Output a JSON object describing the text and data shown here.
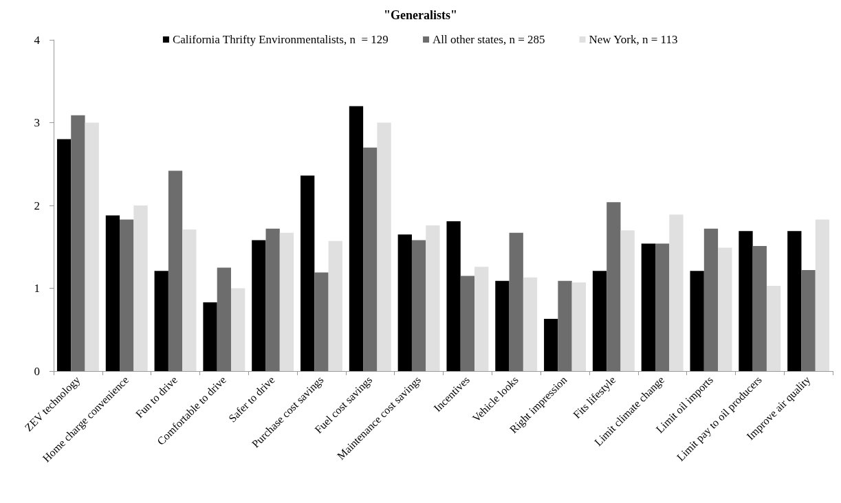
{
  "chart_data": {
    "type": "bar",
    "title": "\"Generalists\"",
    "categories": [
      "ZEV technology",
      "Home charge convenience",
      "Fun to drive",
      "Comfortable to drive",
      "Safer to drive",
      "Purchase cost savings",
      "Fuel cost savings",
      "Maintenance cost savings",
      "Incentives",
      "Vehicle looks",
      "Right impression",
      "Fits lifestyle",
      "Limit climate change",
      "Limit oil imports",
      "Limit pay to oil producers",
      "Improve air quality"
    ],
    "series": [
      {
        "name": "California Thrifty Environmentalists, n  = 129",
        "color": "#000000",
        "values": [
          2.8,
          1.88,
          1.21,
          0.83,
          1.58,
          2.36,
          3.2,
          1.65,
          1.81,
          1.09,
          0.63,
          1.21,
          1.54,
          1.21,
          1.69,
          1.69
        ]
      },
      {
        "name": "All other states, n = 285",
        "color": "#6d6d6d",
        "values": [
          3.09,
          1.83,
          2.42,
          1.25,
          1.72,
          1.19,
          2.7,
          1.58,
          1.15,
          1.67,
          1.09,
          2.04,
          1.54,
          1.72,
          1.51,
          1.22
        ]
      },
      {
        "name": "New York, n = 113",
        "color": "#e0e0e0",
        "values": [
          3.0,
          2.0,
          1.71,
          1.0,
          1.67,
          1.57,
          3.0,
          1.76,
          1.26,
          1.13,
          1.07,
          1.7,
          1.89,
          1.49,
          1.03,
          1.83
        ]
      }
    ],
    "ylim": [
      0,
      4
    ],
    "yticks": [
      0,
      1,
      2,
      3,
      4
    ],
    "grid": false,
    "legend": "top"
  }
}
